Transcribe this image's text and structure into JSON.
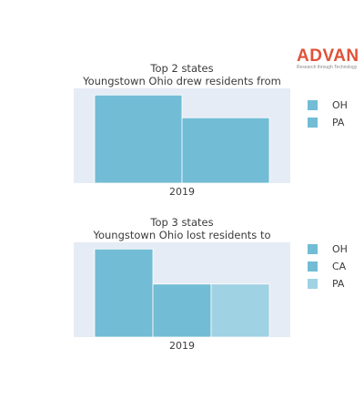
{
  "brand": {
    "name": "ADVAN",
    "tagline": "Research through Technology"
  },
  "chart_data": [
    {
      "type": "bar",
      "title": "Top 2 states",
      "subtitle": "Youngstown Ohio drew residents from",
      "categories": [
        "2019"
      ],
      "ylim": [
        0,
        1.0
      ],
      "grid": true,
      "legend_position": "right",
      "series": [
        {
          "name": "OH",
          "values": [
            0.93
          ],
          "color": "#72bcd5"
        },
        {
          "name": "PA",
          "values": [
            0.69
          ],
          "color": "#72bcd5"
        }
      ]
    },
    {
      "type": "bar",
      "title": "Top 3 states",
      "subtitle": "Youngstown Ohio lost residents to",
      "categories": [
        "2019"
      ],
      "ylim": [
        0,
        1.0
      ],
      "grid": true,
      "legend_position": "right",
      "series": [
        {
          "name": "OH",
          "values": [
            0.93
          ],
          "color": "#72bcd5"
        },
        {
          "name": "CA",
          "values": [
            0.56
          ],
          "color": "#72bcd5"
        },
        {
          "name": "PA",
          "values": [
            0.56
          ],
          "color": "#9fd2e3"
        }
      ]
    }
  ]
}
